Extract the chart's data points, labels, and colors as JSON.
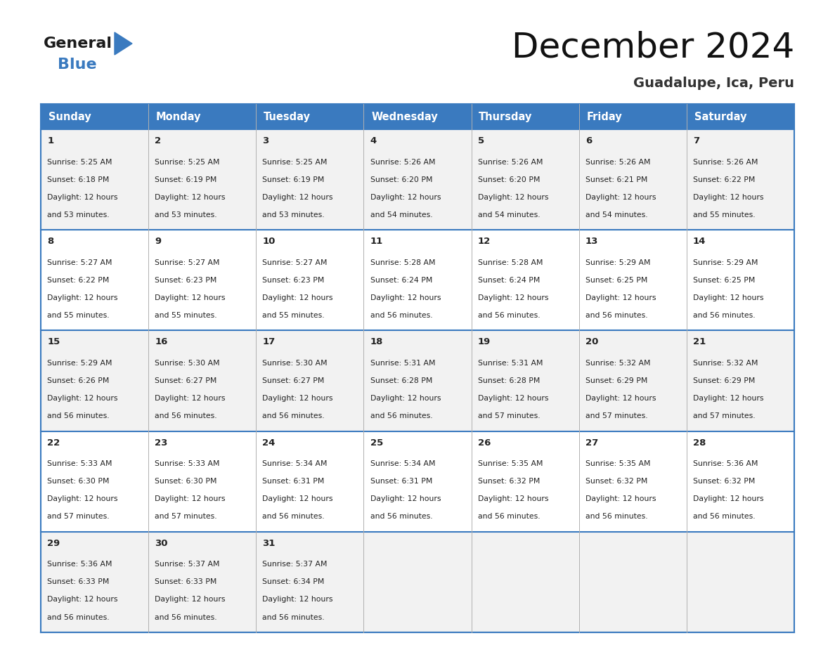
{
  "title": "December 2024",
  "subtitle": "Guadalupe, Ica, Peru",
  "header_color": "#3a7abf",
  "header_text_color": "#ffffff",
  "cell_bg_even": "#f2f2f2",
  "cell_bg_odd": "#ffffff",
  "text_color": "#222222",
  "border_color": "#3a7abf",
  "days_of_week": [
    "Sunday",
    "Monday",
    "Tuesday",
    "Wednesday",
    "Thursday",
    "Friday",
    "Saturday"
  ],
  "weeks": [
    [
      {
        "day": 1,
        "sunrise": "5:25 AM",
        "sunset": "6:18 PM",
        "daylight_main": "12 hours",
        "daylight_sub": "and 53 minutes."
      },
      {
        "day": 2,
        "sunrise": "5:25 AM",
        "sunset": "6:19 PM",
        "daylight_main": "12 hours",
        "daylight_sub": "and 53 minutes."
      },
      {
        "day": 3,
        "sunrise": "5:25 AM",
        "sunset": "6:19 PM",
        "daylight_main": "12 hours",
        "daylight_sub": "and 53 minutes."
      },
      {
        "day": 4,
        "sunrise": "5:26 AM",
        "sunset": "6:20 PM",
        "daylight_main": "12 hours",
        "daylight_sub": "and 54 minutes."
      },
      {
        "day": 5,
        "sunrise": "5:26 AM",
        "sunset": "6:20 PM",
        "daylight_main": "12 hours",
        "daylight_sub": "and 54 minutes."
      },
      {
        "day": 6,
        "sunrise": "5:26 AM",
        "sunset": "6:21 PM",
        "daylight_main": "12 hours",
        "daylight_sub": "and 54 minutes."
      },
      {
        "day": 7,
        "sunrise": "5:26 AM",
        "sunset": "6:22 PM",
        "daylight_main": "12 hours",
        "daylight_sub": "and 55 minutes."
      }
    ],
    [
      {
        "day": 8,
        "sunrise": "5:27 AM",
        "sunset": "6:22 PM",
        "daylight_main": "12 hours",
        "daylight_sub": "and 55 minutes."
      },
      {
        "day": 9,
        "sunrise": "5:27 AM",
        "sunset": "6:23 PM",
        "daylight_main": "12 hours",
        "daylight_sub": "and 55 minutes."
      },
      {
        "day": 10,
        "sunrise": "5:27 AM",
        "sunset": "6:23 PM",
        "daylight_main": "12 hours",
        "daylight_sub": "and 55 minutes."
      },
      {
        "day": 11,
        "sunrise": "5:28 AM",
        "sunset": "6:24 PM",
        "daylight_main": "12 hours",
        "daylight_sub": "and 56 minutes."
      },
      {
        "day": 12,
        "sunrise": "5:28 AM",
        "sunset": "6:24 PM",
        "daylight_main": "12 hours",
        "daylight_sub": "and 56 minutes."
      },
      {
        "day": 13,
        "sunrise": "5:29 AM",
        "sunset": "6:25 PM",
        "daylight_main": "12 hours",
        "daylight_sub": "and 56 minutes."
      },
      {
        "day": 14,
        "sunrise": "5:29 AM",
        "sunset": "6:25 PM",
        "daylight_main": "12 hours",
        "daylight_sub": "and 56 minutes."
      }
    ],
    [
      {
        "day": 15,
        "sunrise": "5:29 AM",
        "sunset": "6:26 PM",
        "daylight_main": "12 hours",
        "daylight_sub": "and 56 minutes."
      },
      {
        "day": 16,
        "sunrise": "5:30 AM",
        "sunset": "6:27 PM",
        "daylight_main": "12 hours",
        "daylight_sub": "and 56 minutes."
      },
      {
        "day": 17,
        "sunrise": "5:30 AM",
        "sunset": "6:27 PM",
        "daylight_main": "12 hours",
        "daylight_sub": "and 56 minutes."
      },
      {
        "day": 18,
        "sunrise": "5:31 AM",
        "sunset": "6:28 PM",
        "daylight_main": "12 hours",
        "daylight_sub": "and 56 minutes."
      },
      {
        "day": 19,
        "sunrise": "5:31 AM",
        "sunset": "6:28 PM",
        "daylight_main": "12 hours",
        "daylight_sub": "and 57 minutes."
      },
      {
        "day": 20,
        "sunrise": "5:32 AM",
        "sunset": "6:29 PM",
        "daylight_main": "12 hours",
        "daylight_sub": "and 57 minutes."
      },
      {
        "day": 21,
        "sunrise": "5:32 AM",
        "sunset": "6:29 PM",
        "daylight_main": "12 hours",
        "daylight_sub": "and 57 minutes."
      }
    ],
    [
      {
        "day": 22,
        "sunrise": "5:33 AM",
        "sunset": "6:30 PM",
        "daylight_main": "12 hours",
        "daylight_sub": "and 57 minutes."
      },
      {
        "day": 23,
        "sunrise": "5:33 AM",
        "sunset": "6:30 PM",
        "daylight_main": "12 hours",
        "daylight_sub": "and 57 minutes."
      },
      {
        "day": 24,
        "sunrise": "5:34 AM",
        "sunset": "6:31 PM",
        "daylight_main": "12 hours",
        "daylight_sub": "and 56 minutes."
      },
      {
        "day": 25,
        "sunrise": "5:34 AM",
        "sunset": "6:31 PM",
        "daylight_main": "12 hours",
        "daylight_sub": "and 56 minutes."
      },
      {
        "day": 26,
        "sunrise": "5:35 AM",
        "sunset": "6:32 PM",
        "daylight_main": "12 hours",
        "daylight_sub": "and 56 minutes."
      },
      {
        "day": 27,
        "sunrise": "5:35 AM",
        "sunset": "6:32 PM",
        "daylight_main": "12 hours",
        "daylight_sub": "and 56 minutes."
      },
      {
        "day": 28,
        "sunrise": "5:36 AM",
        "sunset": "6:32 PM",
        "daylight_main": "12 hours",
        "daylight_sub": "and 56 minutes."
      }
    ],
    [
      {
        "day": 29,
        "sunrise": "5:36 AM",
        "sunset": "6:33 PM",
        "daylight_main": "12 hours",
        "daylight_sub": "and 56 minutes."
      },
      {
        "day": 30,
        "sunrise": "5:37 AM",
        "sunset": "6:33 PM",
        "daylight_main": "12 hours",
        "daylight_sub": "and 56 minutes."
      },
      {
        "day": 31,
        "sunrise": "5:37 AM",
        "sunset": "6:34 PM",
        "daylight_main": "12 hours",
        "daylight_sub": "and 56 minutes."
      },
      null,
      null,
      null,
      null
    ]
  ]
}
